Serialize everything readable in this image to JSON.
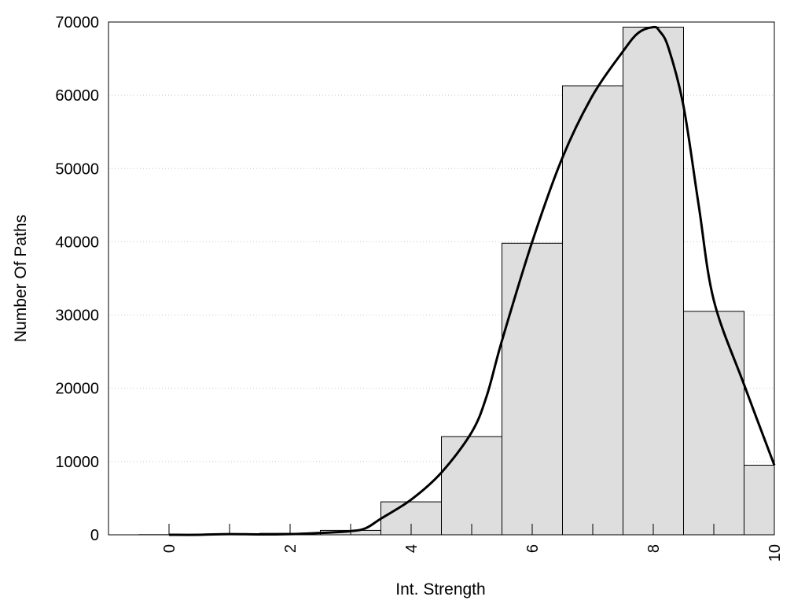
{
  "chart_data": {
    "type": "bar",
    "xlabel": "Int. Strength",
    "ylabel": "Number Of Paths",
    "xlim": [
      -1,
      10
    ],
    "ylim": [
      0,
      70000
    ],
    "x_ticks": [
      "0",
      "2",
      "4",
      "6",
      "8",
      "10"
    ],
    "y_ticks": [
      "0",
      "10000",
      "20000",
      "30000",
      "40000",
      "50000",
      "60000",
      "70000"
    ],
    "grid": "horizontal dotted",
    "bins": [
      {
        "center": 0,
        "value": 20
      },
      {
        "center": 1,
        "value": 50
      },
      {
        "center": 2,
        "value": 200
      },
      {
        "center": 3,
        "value": 600
      },
      {
        "center": 4,
        "value": 4500
      },
      {
        "center": 5,
        "value": 13400
      },
      {
        "center": 6,
        "value": 39800
      },
      {
        "center": 7,
        "value": 61300
      },
      {
        "center": 8,
        "value": 69300
      },
      {
        "center": 9,
        "value": 30500
      },
      {
        "center": 10,
        "value": 9500
      }
    ],
    "curve": {
      "x": [
        0,
        0.5,
        1,
        1.5,
        2,
        2.5,
        3,
        3.25,
        3.5,
        4,
        4.5,
        5,
        5.25,
        5.5,
        6,
        6.5,
        7,
        7.5,
        7.75,
        8,
        8.1,
        8.25,
        8.5,
        8.75,
        9,
        9.5,
        10
      ],
      "y": [
        0,
        0,
        100,
        50,
        100,
        250,
        500,
        900,
        2200,
        4800,
        8500,
        14000,
        19000,
        26500,
        40000,
        51500,
        60000,
        66000,
        68500,
        69300,
        68800,
        66500,
        58500,
        45000,
        32000,
        20500,
        9500
      ]
    },
    "colors": {
      "bar_fill": "#dedede",
      "bar_stroke": "#000000",
      "curve": "#000000",
      "grid": "#c8c8c8"
    }
  }
}
